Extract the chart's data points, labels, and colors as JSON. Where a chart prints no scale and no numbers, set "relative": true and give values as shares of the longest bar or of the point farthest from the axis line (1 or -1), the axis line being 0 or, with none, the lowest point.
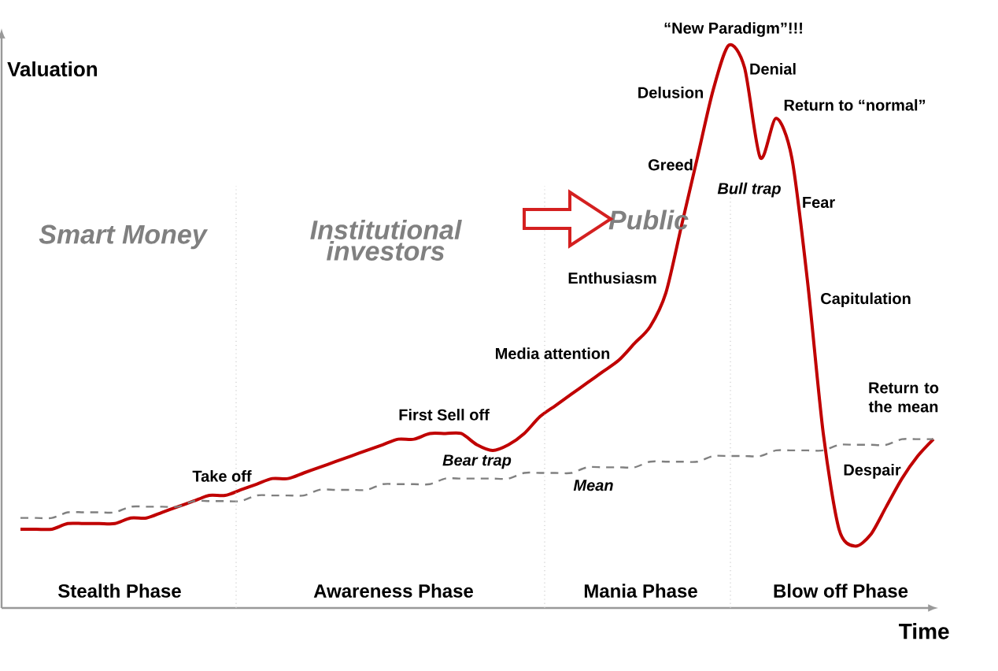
{
  "chart_data": {
    "type": "line",
    "relative": true,
    "xlabel": "Time",
    "ylabel": "Valuation",
    "categories": [
      null,
      null,
      null,
      null,
      null,
      null,
      null,
      null,
      null,
      null,
      null,
      null,
      null,
      null,
      null,
      null,
      null,
      null,
      null,
      null,
      null,
      null,
      null,
      null,
      null,
      null,
      null,
      null,
      null,
      null,
      null,
      null,
      null,
      null,
      null,
      null,
      null,
      null,
      null,
      null,
      null,
      null,
      null,
      null,
      null,
      null,
      null,
      null,
      null,
      null,
      null,
      null,
      null,
      null,
      null,
      null,
      null,
      null,
      null
    ],
    "series": [
      {
        "color": "#c00000",
        "line_style": "solid",
        "values": [
          0.14,
          0.14,
          0.14,
          0.15,
          0.15,
          0.15,
          0.15,
          0.16,
          0.16,
          0.17,
          0.18,
          0.19,
          0.2,
          0.2,
          0.21,
          0.22,
          0.23,
          0.23,
          0.24,
          0.25,
          0.26,
          0.27,
          0.28,
          0.29,
          0.3,
          0.3,
          0.31,
          0.31,
          0.31,
          0.29,
          0.28,
          0.29,
          0.31,
          0.34,
          0.36,
          0.38,
          0.4,
          0.42,
          0.44,
          0.47,
          0.5,
          0.56,
          0.68,
          0.8,
          0.92,
          1,
          0.96,
          0.8,
          0.87,
          0.8,
          0.58,
          0.31,
          0.14,
          0.11,
          0.13,
          0.18,
          0.23,
          0.27,
          0.3
        ]
      },
      {
        "color": "#808080",
        "line_style": "dashed",
        "values": [
          0.16,
          0.16,
          0.16,
          0.17,
          0.17,
          0.17,
          0.17,
          0.18,
          0.18,
          0.18,
          0.18,
          0.19,
          0.19,
          0.19,
          0.19,
          0.2,
          0.2,
          0.2,
          0.2,
          0.21,
          0.21,
          0.21,
          0.21,
          0.22,
          0.22,
          0.22,
          0.22,
          0.23,
          0.23,
          0.23,
          0.23,
          0.23,
          0.24,
          0.24,
          0.24,
          0.24,
          0.25,
          0.25,
          0.25,
          0.25,
          0.26,
          0.26,
          0.26,
          0.26,
          0.27,
          0.27,
          0.27,
          0.27,
          0.28,
          0.28,
          0.28,
          0.28,
          0.29,
          0.29,
          0.29,
          0.29,
          0.3,
          0.3,
          0.3
        ]
      }
    ],
    "annotations": [
      "“New Paradigm”!!!",
      "Denial",
      "Delusion",
      "Return to “normal”",
      "Greed",
      "Bull trap",
      "Fear",
      "Enthusiasm",
      "Capitulation",
      "Media attention",
      "First Sell off",
      "Bear trap",
      "Take off",
      "Mean",
      "Return to the mean",
      "Despair",
      "Smart Money",
      "Institutional investors",
      "Public",
      "Stealth Phase",
      "Awareness Phase",
      "Mania Phase",
      "Blow off Phase"
    ]
  }
}
